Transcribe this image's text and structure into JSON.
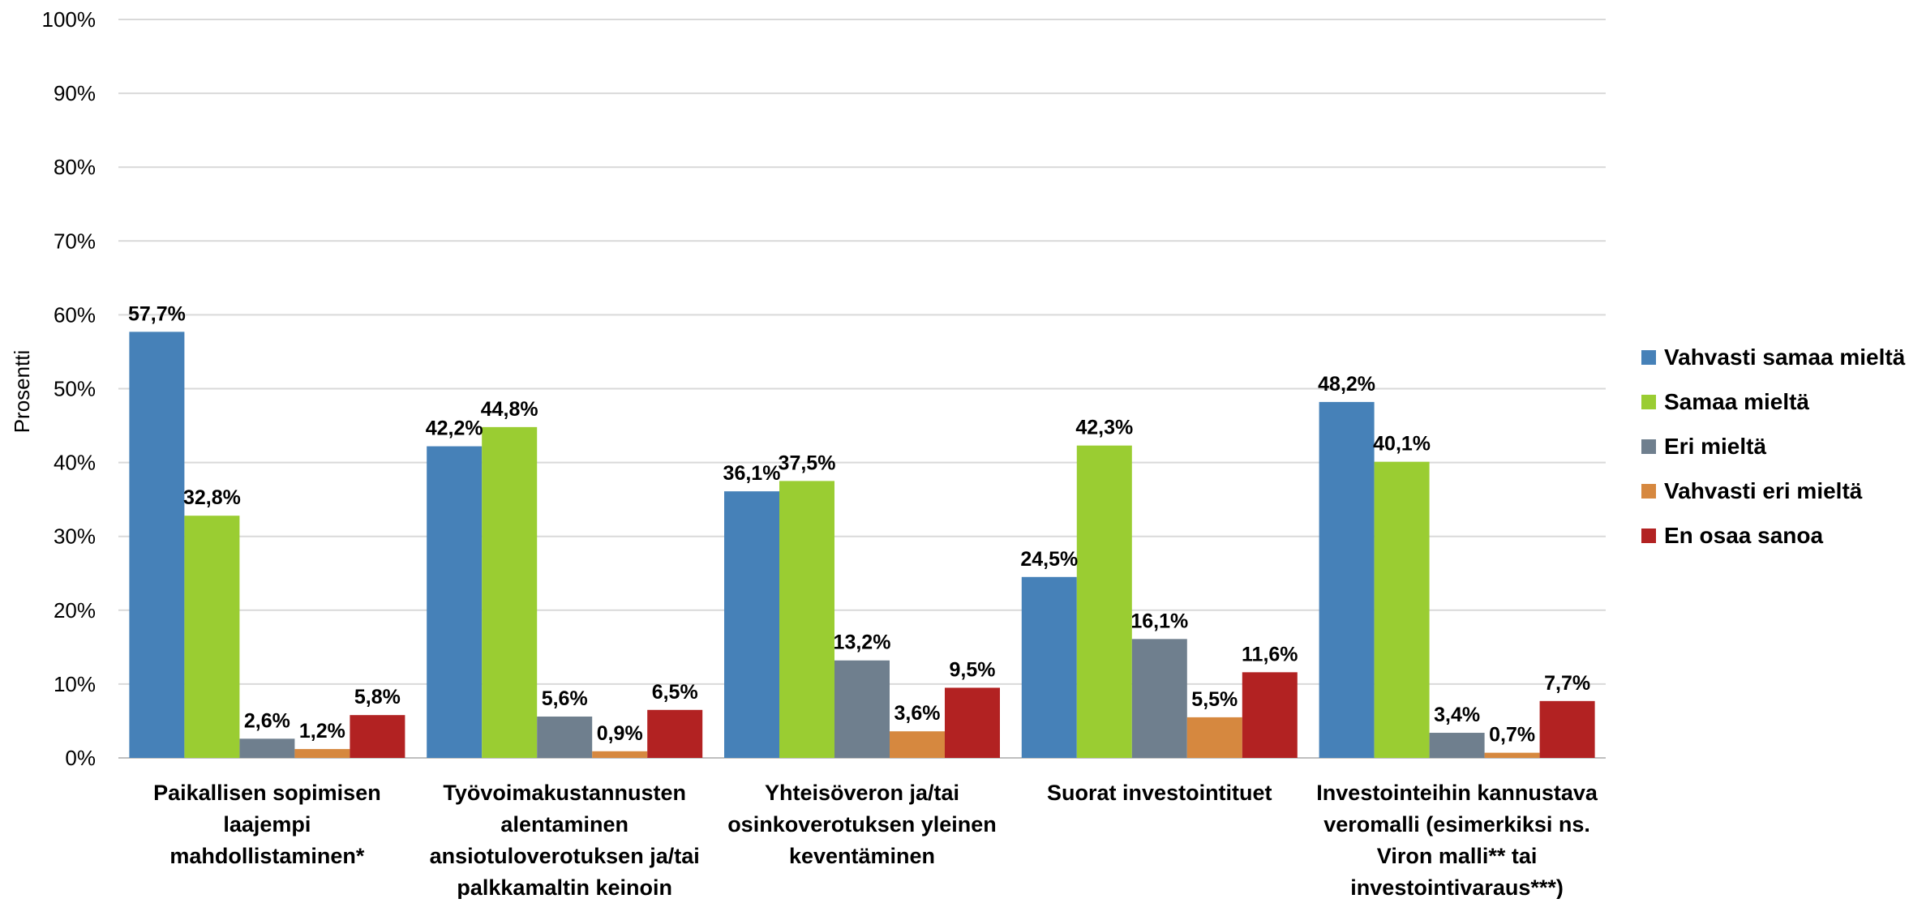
{
  "chart_data": {
    "type": "bar",
    "ylabel": "Prosentti",
    "ylim": [
      0,
      100
    ],
    "yticks": [
      "0%",
      "10%",
      "20%",
      "30%",
      "40%",
      "50%",
      "60%",
      "70%",
      "80%",
      "90%",
      "100%"
    ],
    "grid": true,
    "legend_position": "right",
    "categories": [
      [
        "Paikallisen sopimisen",
        "laajempi",
        "mahdollistaminen*"
      ],
      [
        "Työvoimakustannusten",
        "alentaminen",
        "ansiotuloverotuksen ja/tai",
        "palkkamaltin keinoin"
      ],
      [
        "Yhteisöveron ja/tai",
        "osinkoverotuksen yleinen",
        "keventäminen"
      ],
      [
        "Suorat investointituet"
      ],
      [
        "Investointeihin kannustava",
        "veromalli (esimerkiksi ns.",
        "Viron malli** tai",
        "investointivaraus***)"
      ]
    ],
    "series": [
      {
        "name": "Vahvasti samaa mieltä",
        "color": "#4681B8",
        "values": [
          57.7,
          42.2,
          36.1,
          24.5,
          48.2
        ],
        "labels": [
          "57,7%",
          "42,2%",
          "36,1%",
          "24,5%",
          "48,2%"
        ]
      },
      {
        "name": "Samaa mieltä",
        "color": "#9ACD32",
        "values": [
          32.8,
          44.8,
          37.5,
          42.3,
          40.1
        ],
        "labels": [
          "32,8%",
          "44,8%",
          "37,5%",
          "42,3%",
          "40,1%"
        ]
      },
      {
        "name": "Eri mieltä",
        "color": "#6F7F8E",
        "values": [
          2.6,
          5.6,
          13.2,
          16.1,
          3.4
        ],
        "labels": [
          "2,6%",
          "5,6%",
          "13,2%",
          "16,1%",
          "3,4%"
        ]
      },
      {
        "name": "Vahvasti eri mieltä",
        "color": "#D6883F",
        "values": [
          1.2,
          0.9,
          3.6,
          5.5,
          0.7
        ],
        "labels": [
          "1,2%",
          "0,9%",
          "3,6%",
          "5,5%",
          "0,7%"
        ]
      },
      {
        "name": "En osaa sanoa",
        "color": "#B22222",
        "values": [
          5.8,
          6.5,
          9.5,
          11.6,
          7.7
        ],
        "labels": [
          "5,8%",
          "6,5%",
          "9,5%",
          "11,6%",
          "7,7%"
        ]
      }
    ]
  }
}
